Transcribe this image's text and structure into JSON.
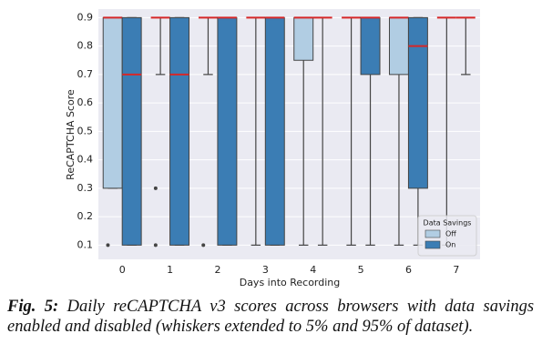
{
  "chart_data": {
    "type": "box",
    "xlabel": "Days into Recording",
    "ylabel": "ReCAPTCHA Score",
    "categories": [
      "0",
      "1",
      "2",
      "3",
      "4",
      "5",
      "6",
      "7"
    ],
    "ylim": [
      0.05,
      0.93
    ],
    "yticks": [
      0.1,
      0.2,
      0.3,
      0.4,
      0.5,
      0.6,
      0.7,
      0.8,
      0.9
    ],
    "grid": true,
    "legend_title": "Data Savings",
    "legend": "lower right",
    "median_color": "#d62728",
    "series": [
      {
        "name": "Off",
        "color": "#b1cde3",
        "low": [
          0.3,
          0.7,
          0.7,
          0.1,
          0.1,
          0.1,
          0.1,
          0.1
        ],
        "q1": [
          0.3,
          0.9,
          0.9,
          0.9,
          0.75,
          0.9,
          0.7,
          0.9
        ],
        "median": [
          0.9,
          0.9,
          0.9,
          0.9,
          0.9,
          0.9,
          0.9,
          0.9
        ],
        "q3": [
          0.9,
          0.9,
          0.9,
          0.9,
          0.9,
          0.9,
          0.9,
          0.9
        ],
        "high": [
          0.9,
          0.9,
          0.9,
          0.9,
          0.9,
          0.9,
          0.9,
          0.9
        ],
        "outliers": [
          [
            0.1
          ],
          [
            0.3,
            0.1
          ],
          [
            0.1
          ],
          [],
          [],
          [],
          [],
          []
        ]
      },
      {
        "name": "On",
        "color": "#3b7db4",
        "low": [
          0.1,
          0.1,
          0.1,
          0.1,
          0.1,
          0.1,
          0.1,
          0.7
        ],
        "q1": [
          0.1,
          0.1,
          0.1,
          0.1,
          0.9,
          0.7,
          0.3,
          0.9
        ],
        "median": [
          0.7,
          0.7,
          0.9,
          0.9,
          0.9,
          0.9,
          0.8,
          0.9
        ],
        "q3": [
          0.9,
          0.9,
          0.9,
          0.9,
          0.9,
          0.9,
          0.9,
          0.9
        ],
        "high": [
          0.9,
          0.9,
          0.9,
          0.9,
          0.9,
          0.9,
          0.9,
          0.9
        ],
        "outliers": [
          [],
          [],
          [],
          [],
          [],
          [],
          [],
          []
        ]
      }
    ]
  },
  "caption": {
    "label": "Fig. 5:",
    "text": "Daily reCAPTCHA v3 scores across browsers with data savings enabled and disabled (whiskers extended to 5% and 95% of dataset)."
  }
}
